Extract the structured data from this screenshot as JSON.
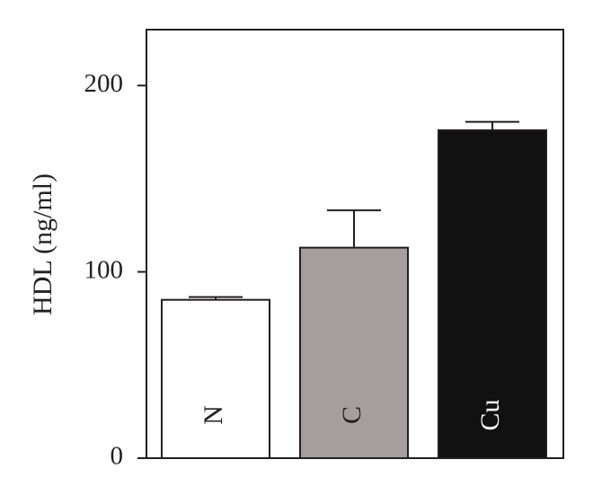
{
  "chart_data": {
    "type": "bar",
    "y_label": "HDL (ng/ml)",
    "categories": [
      "N",
      "C",
      "Cu"
    ],
    "values": [
      85,
      113,
      176
    ],
    "errors": [
      1.5,
      20,
      4.5
    ],
    "colors": [
      "#ffffff",
      "#a59e9e",
      "#111111"
    ],
    "label_colors": [
      "#231f20",
      "#231f20",
      "#ffffff"
    ],
    "ylim": [
      0,
      230
    ],
    "yticks": [
      0,
      100,
      200
    ]
  }
}
